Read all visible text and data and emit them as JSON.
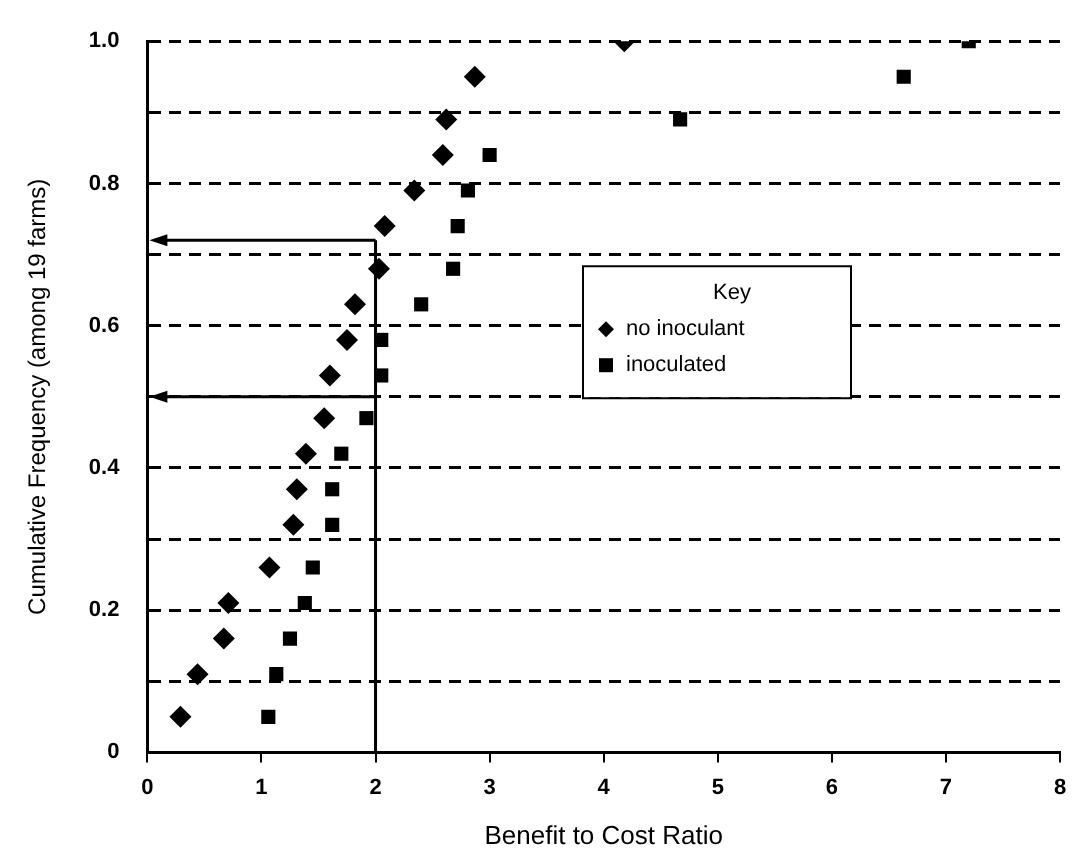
{
  "chart_data": {
    "type": "scatter",
    "xlabel": "Benefit to Cost Ratio",
    "ylabel": "Cumulative Frequency (among 19 farms)",
    "legend_title": "Key",
    "legend": "right",
    "grid": "y",
    "xlim": [
      0,
      8
    ],
    "xticks": [
      0,
      1,
      2,
      3,
      4,
      5,
      6,
      7,
      8
    ],
    "ylim": [
      0,
      1
    ],
    "yticks": [
      0,
      {
        "value": 0.1,
        "label": null
      },
      0.2,
      {
        "value": 0.3,
        "label": null
      },
      0.4,
      {
        "value": 0.5,
        "label": null
      },
      0.6,
      {
        "value": 0.7,
        "label": null
      },
      0.8,
      {
        "value": 0.9,
        "label": null
      },
      {
        "value": 1,
        "label": "1.0"
      }
    ],
    "ref_lines": [
      {
        "axis": "x",
        "value": 2
      },
      {
        "axis": "y",
        "value": 0.72
      },
      {
        "axis": "y",
        "value": 0.5
      }
    ],
    "series": [
      {
        "name": "no inoculant",
        "color": "#000000",
        "marker": "diamond",
        "x": [
          0.29,
          0.44,
          0.67,
          0.71,
          1.07,
          1.28,
          1.31,
          1.39,
          1.55,
          1.6,
          1.75,
          1.82,
          2.03,
          2.08,
          2.34,
          2.59,
          2.62,
          2.87,
          4.18
        ],
        "values": [
          0.05,
          0.11,
          0.16,
          0.21,
          0.26,
          0.32,
          0.37,
          0.42,
          0.47,
          0.53,
          0.58,
          0.63,
          0.68,
          0.74,
          0.79,
          0.84,
          0.89,
          0.95,
          1.0
        ]
      },
      {
        "name": "inoculated",
        "color": "#000000",
        "marker": "square",
        "x": [
          1.06,
          1.13,
          1.25,
          1.38,
          1.45,
          1.62,
          1.62,
          1.7,
          1.92,
          2.05,
          2.05,
          2.4,
          2.68,
          2.72,
          2.81,
          3.0,
          4.67,
          6.63,
          7.2
        ],
        "values": [
          0.05,
          0.11,
          0.16,
          0.21,
          0.26,
          0.32,
          0.37,
          0.42,
          0.47,
          0.53,
          0.58,
          0.63,
          0.68,
          0.74,
          0.79,
          0.84,
          0.89,
          0.95,
          1.0
        ]
      }
    ]
  }
}
